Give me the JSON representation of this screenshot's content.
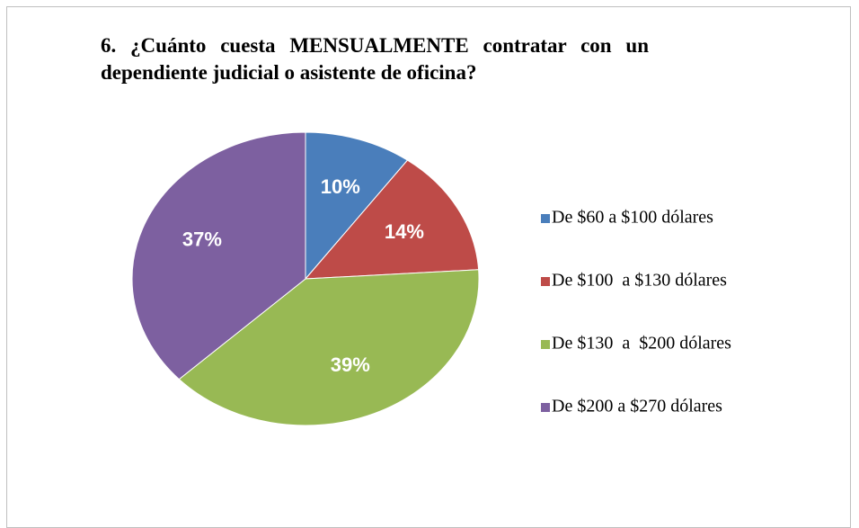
{
  "chart_data": {
    "type": "pie",
    "title": "6. ¿Cuánto cuesta MENSUALMENTE contratar con un dependiente judicial o asistente de oficina?",
    "categories": [
      "De $60 a $100 dólares",
      "De $100  a $130 dólares",
      "De $130  a  $200 dólares",
      "De $200 a $270 dólares"
    ],
    "values": [
      10,
      14,
      39,
      37
    ],
    "value_labels": [
      "10%",
      "14%",
      "39%",
      "37%"
    ],
    "colors": [
      "#4a7ebb",
      "#be4b48",
      "#98b954",
      "#7d60a0"
    ],
    "legend": "right"
  }
}
